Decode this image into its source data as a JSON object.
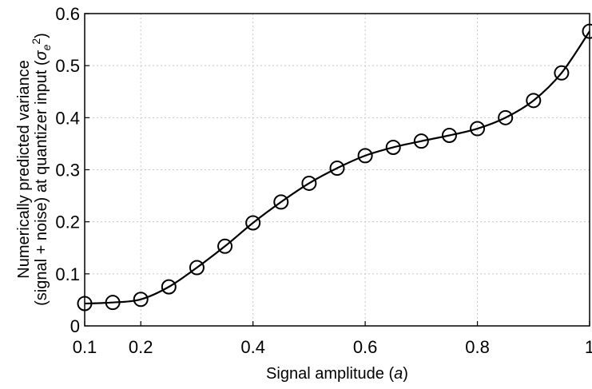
{
  "chart_data": {
    "type": "line",
    "xlabel_main": "Signal amplitude (",
    "xlabel_var": "a",
    "xlabel_end": ")",
    "ylabel_line1": "Numerically predicted variance",
    "ylabel_line2_main": "(signal + noise) at quantizer input (",
    "ylabel_line2_sym": "σ",
    "ylabel_line2_sub": "e",
    "ylabel_line2_sup": "2",
    "ylabel_line2_end": ")",
    "xlim": [
      0.1,
      1.0
    ],
    "ylim": [
      0,
      0.6
    ],
    "x_ticks": [
      0.1,
      0.2,
      0.4,
      0.6,
      0.8,
      1.0
    ],
    "x_tick_labels": [
      "0.1",
      "0.2",
      "0.4",
      "0.6",
      "0.8",
      "1"
    ],
    "y_ticks": [
      0,
      0.1,
      0.2,
      0.3,
      0.4,
      0.5,
      0.6
    ],
    "y_tick_labels": [
      "0",
      "0.1",
      "0.2",
      "0.3",
      "0.4",
      "0.5",
      "0.6"
    ],
    "grid": true,
    "series": [
      {
        "marker": "circle",
        "color": "#000000",
        "x": [
          0.1,
          0.15,
          0.2,
          0.25,
          0.3,
          0.35,
          0.4,
          0.45,
          0.5,
          0.55,
          0.6,
          0.65,
          0.7,
          0.75,
          0.8,
          0.85,
          0.9,
          0.95,
          1.0
        ],
        "y": [
          0.043,
          0.045,
          0.051,
          0.075,
          0.112,
          0.153,
          0.198,
          0.238,
          0.274,
          0.303,
          0.327,
          0.343,
          0.355,
          0.366,
          0.379,
          0.4,
          0.433,
          0.486,
          0.566
        ]
      }
    ]
  }
}
